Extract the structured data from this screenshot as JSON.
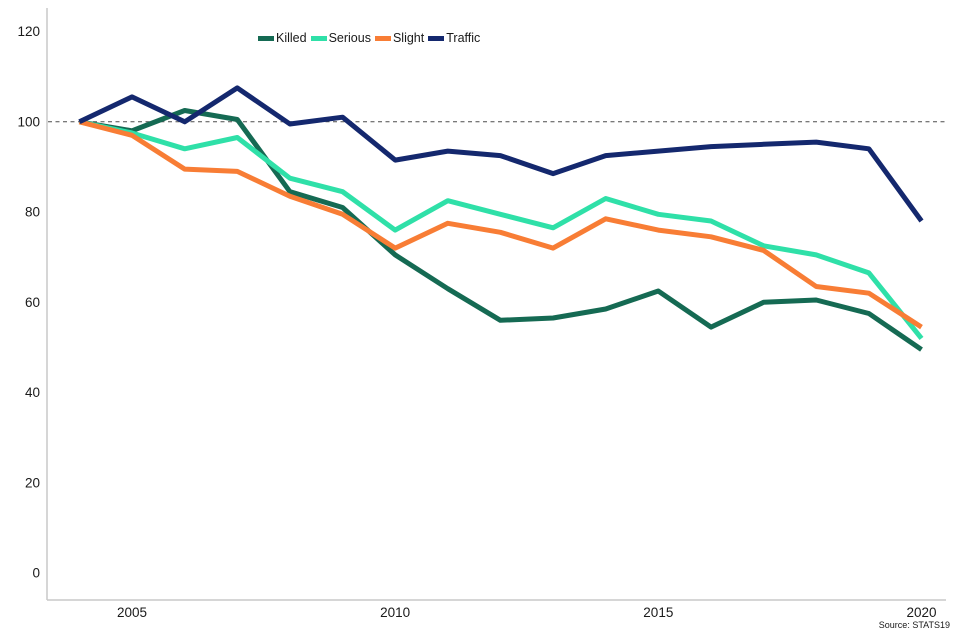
{
  "chart_data": {
    "type": "line",
    "title": "",
    "xlabel": "",
    "ylabel": "",
    "x": [
      2004,
      2005,
      2006,
      2007,
      2008,
      2009,
      2010,
      2011,
      2012,
      2013,
      2014,
      2015,
      2016,
      2017,
      2018,
      2019,
      2020
    ],
    "series": [
      {
        "name": "Killed",
        "color": "#156a53",
        "values": [
          100,
          98,
          102.5,
          100.5,
          84.5,
          81,
          70.5,
          63,
          56,
          56.5,
          58.5,
          62.5,
          54.5,
          60,
          60.5,
          57.5,
          49.5
        ]
      },
      {
        "name": "Serious",
        "color": "#2fe0a8",
        "values": [
          100,
          97.5,
          94,
          96.5,
          87.5,
          84.5,
          76,
          82.5,
          79.5,
          76.5,
          83,
          79.5,
          78,
          72.5,
          70.5,
          66.5,
          52
        ]
      },
      {
        "name": "Slight",
        "color": "#f87d35",
        "values": [
          100,
          97,
          89.5,
          89,
          83.5,
          79.5,
          72,
          77.5,
          75.5,
          72,
          78.5,
          76,
          74.5,
          71.5,
          63.5,
          62,
          54.5
        ]
      },
      {
        "name": "Traffic",
        "color": "#14286e",
        "values": [
          100,
          105.5,
          100,
          107.5,
          99.5,
          101,
          91.5,
          93.5,
          92.5,
          88.5,
          92.5,
          93.5,
          94.5,
          95,
          95.5,
          94,
          78
        ]
      }
    ],
    "ylim": [
      0,
      120
    ],
    "yticks": [
      0,
      20,
      40,
      60,
      80,
      100,
      120
    ],
    "xticks": [
      2005,
      2010,
      2015,
      2020
    ],
    "reference_line": {
      "value": 100,
      "style": "dashed",
      "color": "#4d4d4d"
    },
    "legend_position": "top",
    "grid": false,
    "axis_color": "#c9c9c9",
    "source": "Source: STATS19"
  }
}
